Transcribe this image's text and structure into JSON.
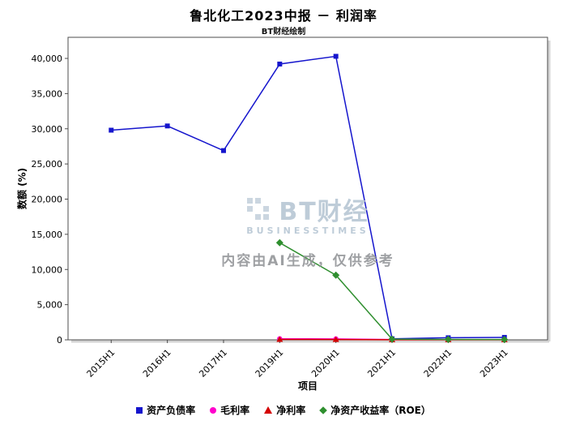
{
  "title": "鲁北化工2023中报 － 利润率",
  "subtitle": "BT财经绘制",
  "watermark": {
    "brand": "BT财经",
    "brand_sub": "BUSINESSTIMES",
    "disclaimer": "内容由AI生成，仅供参考"
  },
  "chart_data": {
    "type": "line",
    "title": "鲁北化工2023中报 － 利润率",
    "subtitle": "BT财经绘制",
    "xlabel": "项目",
    "ylabel": "数额 (%)",
    "categories": [
      "2015H1",
      "2016H1",
      "2017H1",
      "2019H1",
      "2020H1",
      "2021H1",
      "2022H1",
      "2023H1"
    ],
    "ylim": [
      0,
      43000
    ],
    "yticks": [
      0,
      5000,
      10000,
      15000,
      20000,
      25000,
      30000,
      35000,
      40000
    ],
    "grid": false,
    "legend_position": "bottom",
    "series": [
      {
        "name": "资产负债率",
        "color": "#1515cd",
        "marker": "square",
        "values": [
          29800,
          30400,
          26900,
          39200,
          40300,
          150,
          300,
          350
        ]
      },
      {
        "name": "毛利率",
        "color": "#ff00cc",
        "marker": "circle",
        "values": [
          null,
          null,
          null,
          150,
          130,
          40,
          35,
          30
        ]
      },
      {
        "name": "净利率",
        "color": "#d40000",
        "marker": "triangle",
        "values": [
          null,
          null,
          null,
          60,
          50,
          15,
          10,
          10
        ]
      },
      {
        "name": "净资产收益率（ROE）",
        "color": "#2f8f2f",
        "marker": "diamond",
        "values": [
          null,
          null,
          null,
          13800,
          9200,
          100,
          60,
          50
        ]
      }
    ]
  }
}
